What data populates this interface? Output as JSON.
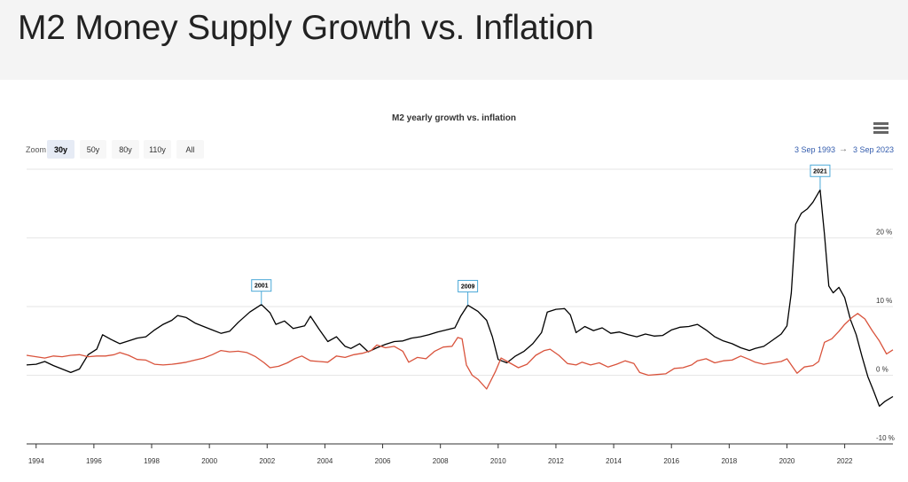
{
  "page": {
    "title": "M2 Money Supply Growth vs. Inflation"
  },
  "toolbar": {
    "zoom_label": "Zoom",
    "zoom_buttons": [
      "30y",
      "50y",
      "80y",
      "110y",
      "All"
    ],
    "active_zoom": "30y",
    "range_from": "3 Sep 1993",
    "range_arrow": "→",
    "range_to": "3 Sep 2023",
    "menu_icon": "hamburger-menu-icon"
  },
  "chart_data": {
    "type": "line",
    "title": "M2 yearly growth vs. inflation",
    "xlabel": "",
    "ylabel": "",
    "x_ticks": [
      "1994",
      "1996",
      "1998",
      "2000",
      "2002",
      "2004",
      "2006",
      "2008",
      "2010",
      "2012",
      "2014",
      "2016",
      "2018",
      "2020",
      "2022"
    ],
    "y_ticks": [
      "-10 %",
      "0 %",
      "10 %",
      "20 %"
    ],
    "xlim": [
      1993.67,
      2023.67
    ],
    "ylim": [
      -10,
      30
    ],
    "grid": true,
    "legend": "none",
    "series": [
      {
        "color": "#000000",
        "points": [
          [
            1993.67,
            1.5
          ],
          [
            1994.0,
            1.6
          ],
          [
            1994.3,
            2.0
          ],
          [
            1994.6,
            1.4
          ],
          [
            1994.9,
            0.9
          ],
          [
            1995.2,
            0.4
          ],
          [
            1995.5,
            0.9
          ],
          [
            1995.8,
            3.0
          ],
          [
            1996.1,
            3.8
          ],
          [
            1996.3,
            5.9
          ],
          [
            1996.6,
            5.2
          ],
          [
            1996.9,
            4.6
          ],
          [
            1997.2,
            5.0
          ],
          [
            1997.5,
            5.4
          ],
          [
            1997.8,
            5.6
          ],
          [
            1998.1,
            6.6
          ],
          [
            1998.4,
            7.4
          ],
          [
            1998.7,
            8.0
          ],
          [
            1998.9,
            8.7
          ],
          [
            1999.2,
            8.4
          ],
          [
            1999.5,
            7.6
          ],
          [
            1999.8,
            7.1
          ],
          [
            2000.1,
            6.6
          ],
          [
            2000.4,
            6.1
          ],
          [
            2000.7,
            6.4
          ],
          [
            2001.0,
            7.7
          ],
          [
            2001.4,
            9.2
          ],
          [
            2001.8,
            10.3
          ],
          [
            2002.1,
            9.1
          ],
          [
            2002.3,
            7.4
          ],
          [
            2002.6,
            7.9
          ],
          [
            2002.9,
            6.8
          ],
          [
            2003.3,
            7.2
          ],
          [
            2003.5,
            8.6
          ],
          [
            2003.8,
            6.7
          ],
          [
            2004.1,
            4.9
          ],
          [
            2004.4,
            5.6
          ],
          [
            2004.7,
            4.2
          ],
          [
            2004.9,
            3.9
          ],
          [
            2005.2,
            4.6
          ],
          [
            2005.5,
            3.4
          ],
          [
            2005.8,
            4.0
          ],
          [
            2006.1,
            4.5
          ],
          [
            2006.4,
            4.9
          ],
          [
            2006.7,
            5.0
          ],
          [
            2007.0,
            5.4
          ],
          [
            2007.3,
            5.6
          ],
          [
            2007.6,
            5.9
          ],
          [
            2007.9,
            6.3
          ],
          [
            2008.2,
            6.6
          ],
          [
            2008.5,
            6.9
          ],
          [
            2008.7,
            8.6
          ],
          [
            2008.95,
            10.2
          ],
          [
            2009.3,
            9.3
          ],
          [
            2009.6,
            8.0
          ],
          [
            2009.8,
            5.6
          ],
          [
            2010.0,
            2.3
          ],
          [
            2010.3,
            1.8
          ],
          [
            2010.6,
            2.8
          ],
          [
            2010.9,
            3.5
          ],
          [
            2011.2,
            4.6
          ],
          [
            2011.5,
            6.2
          ],
          [
            2011.7,
            9.2
          ],
          [
            2012.0,
            9.6
          ],
          [
            2012.3,
            9.7
          ],
          [
            2012.5,
            8.8
          ],
          [
            2012.7,
            6.2
          ],
          [
            2013.0,
            7.1
          ],
          [
            2013.3,
            6.5
          ],
          [
            2013.6,
            6.9
          ],
          [
            2013.9,
            6.1
          ],
          [
            2014.2,
            6.3
          ],
          [
            2014.5,
            5.9
          ],
          [
            2014.8,
            5.6
          ],
          [
            2015.1,
            6.0
          ],
          [
            2015.4,
            5.7
          ],
          [
            2015.7,
            5.8
          ],
          [
            2016.0,
            6.6
          ],
          [
            2016.3,
            7.0
          ],
          [
            2016.6,
            7.1
          ],
          [
            2016.9,
            7.4
          ],
          [
            2017.2,
            6.6
          ],
          [
            2017.5,
            5.6
          ],
          [
            2017.8,
            5.0
          ],
          [
            2018.1,
            4.6
          ],
          [
            2018.4,
            4.0
          ],
          [
            2018.7,
            3.6
          ],
          [
            2018.9,
            3.9
          ],
          [
            2019.2,
            4.2
          ],
          [
            2019.5,
            5.1
          ],
          [
            2019.8,
            6.0
          ],
          [
            2020.0,
            7.2
          ],
          [
            2020.15,
            12.0
          ],
          [
            2020.3,
            22.0
          ],
          [
            2020.5,
            23.6
          ],
          [
            2020.7,
            24.2
          ],
          [
            2020.9,
            25.2
          ],
          [
            2021.15,
            27.0
          ],
          [
            2021.3,
            20.5
          ],
          [
            2021.45,
            13.0
          ],
          [
            2021.6,
            12.0
          ],
          [
            2021.8,
            12.8
          ],
          [
            2022.0,
            11.3
          ],
          [
            2022.2,
            8.1
          ],
          [
            2022.4,
            5.9
          ],
          [
            2022.6,
            2.7
          ],
          [
            2022.8,
            -0.2
          ],
          [
            2023.0,
            -2.3
          ],
          [
            2023.2,
            -4.5
          ],
          [
            2023.4,
            -3.8
          ],
          [
            2023.67,
            -3.1
          ]
        ]
      },
      {
        "color": "#d9533c",
        "points": [
          [
            1993.67,
            2.9
          ],
          [
            1994.0,
            2.7
          ],
          [
            1994.3,
            2.5
          ],
          [
            1994.6,
            2.8
          ],
          [
            1994.9,
            2.7
          ],
          [
            1995.2,
            2.9
          ],
          [
            1995.5,
            3.0
          ],
          [
            1995.8,
            2.7
          ],
          [
            1996.1,
            2.8
          ],
          [
            1996.4,
            2.8
          ],
          [
            1996.7,
            3.0
          ],
          [
            1996.9,
            3.3
          ],
          [
            1997.2,
            2.9
          ],
          [
            1997.5,
            2.3
          ],
          [
            1997.8,
            2.2
          ],
          [
            1998.1,
            1.6
          ],
          [
            1998.4,
            1.5
          ],
          [
            1998.7,
            1.6
          ],
          [
            1998.9,
            1.7
          ],
          [
            1999.2,
            1.9
          ],
          [
            1999.5,
            2.2
          ],
          [
            1999.8,
            2.5
          ],
          [
            2000.1,
            3.0
          ],
          [
            2000.4,
            3.6
          ],
          [
            2000.7,
            3.4
          ],
          [
            2001.0,
            3.5
          ],
          [
            2001.3,
            3.3
          ],
          [
            2001.6,
            2.7
          ],
          [
            2001.9,
            1.8
          ],
          [
            2002.1,
            1.1
          ],
          [
            2002.4,
            1.3
          ],
          [
            2002.7,
            1.8
          ],
          [
            2002.95,
            2.4
          ],
          [
            2003.2,
            2.8
          ],
          [
            2003.5,
            2.1
          ],
          [
            2003.8,
            2.0
          ],
          [
            2004.1,
            1.9
          ],
          [
            2004.4,
            2.8
          ],
          [
            2004.7,
            2.6
          ],
          [
            2005.0,
            3.0
          ],
          [
            2005.3,
            3.2
          ],
          [
            2005.6,
            3.6
          ],
          [
            2005.8,
            4.4
          ],
          [
            2006.1,
            4.0
          ],
          [
            2006.4,
            4.2
          ],
          [
            2006.7,
            3.5
          ],
          [
            2006.9,
            1.9
          ],
          [
            2007.2,
            2.6
          ],
          [
            2007.5,
            2.4
          ],
          [
            2007.8,
            3.5
          ],
          [
            2008.1,
            4.1
          ],
          [
            2008.4,
            4.2
          ],
          [
            2008.6,
            5.5
          ],
          [
            2008.75,
            5.3
          ],
          [
            2008.9,
            1.5
          ],
          [
            2009.1,
            0.0
          ],
          [
            2009.3,
            -0.6
          ],
          [
            2009.6,
            -2.0
          ],
          [
            2009.9,
            0.5
          ],
          [
            2010.1,
            2.5
          ],
          [
            2010.4,
            1.8
          ],
          [
            2010.7,
            1.1
          ],
          [
            2011.0,
            1.6
          ],
          [
            2011.3,
            2.9
          ],
          [
            2011.6,
            3.6
          ],
          [
            2011.8,
            3.8
          ],
          [
            2012.1,
            2.9
          ],
          [
            2012.4,
            1.7
          ],
          [
            2012.7,
            1.5
          ],
          [
            2012.9,
            1.9
          ],
          [
            2013.2,
            1.5
          ],
          [
            2013.5,
            1.8
          ],
          [
            2013.8,
            1.2
          ],
          [
            2014.1,
            1.6
          ],
          [
            2014.4,
            2.1
          ],
          [
            2014.7,
            1.7
          ],
          [
            2014.9,
            0.4
          ],
          [
            2015.2,
            0.0
          ],
          [
            2015.5,
            0.1
          ],
          [
            2015.8,
            0.2
          ],
          [
            2016.1,
            1.0
          ],
          [
            2016.4,
            1.1
          ],
          [
            2016.7,
            1.5
          ],
          [
            2016.9,
            2.1
          ],
          [
            2017.2,
            2.4
          ],
          [
            2017.5,
            1.8
          ],
          [
            2017.8,
            2.1
          ],
          [
            2018.1,
            2.2
          ],
          [
            2018.4,
            2.8
          ],
          [
            2018.7,
            2.3
          ],
          [
            2018.9,
            1.9
          ],
          [
            2019.2,
            1.6
          ],
          [
            2019.5,
            1.8
          ],
          [
            2019.8,
            2.0
          ],
          [
            2020.0,
            2.4
          ],
          [
            2020.2,
            1.2
          ],
          [
            2020.35,
            0.3
          ],
          [
            2020.6,
            1.2
          ],
          [
            2020.9,
            1.4
          ],
          [
            2021.1,
            2.0
          ],
          [
            2021.3,
            4.8
          ],
          [
            2021.55,
            5.3
          ],
          [
            2021.8,
            6.4
          ],
          [
            2022.0,
            7.4
          ],
          [
            2022.25,
            8.4
          ],
          [
            2022.45,
            9.0
          ],
          [
            2022.7,
            8.2
          ],
          [
            2022.95,
            6.5
          ],
          [
            2023.2,
            5.0
          ],
          [
            2023.45,
            3.1
          ],
          [
            2023.67,
            3.7
          ]
        ]
      }
    ],
    "flags": [
      {
        "label": "2001",
        "x": 2001.8,
        "y": 10.3
      },
      {
        "label": "2009",
        "x": 2008.95,
        "y": 10.2
      },
      {
        "label": "2021",
        "x": 2021.15,
        "y": 27.0
      }
    ]
  }
}
